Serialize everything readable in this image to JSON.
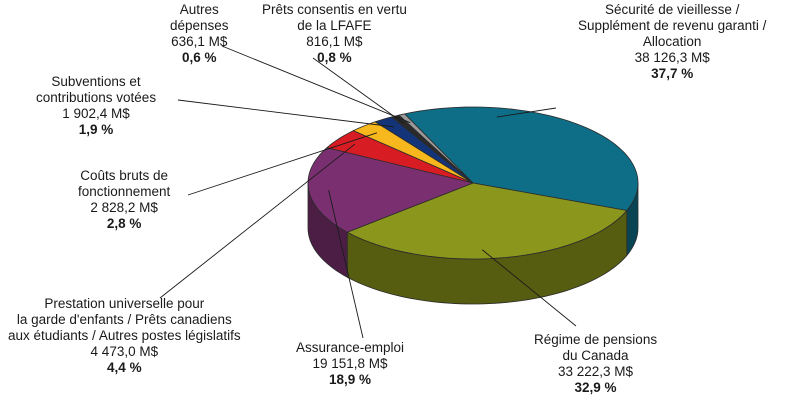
{
  "chart_data": {
    "type": "pie",
    "style": "3d",
    "slices": [
      {
        "lines": [
          "Sécurité de vieillesse /",
          "Supplément de revenu garanti /",
          "Allocation"
        ],
        "amount": "38 126,3 M$",
        "percent_label": "37,7 %",
        "value": 37.7,
        "color": "#0e6e87"
      },
      {
        "lines": [
          "Régime de pensions",
          "du Canada"
        ],
        "amount": "33 222,3 M$",
        "percent_label": "32,9 %",
        "value": 32.9,
        "color": "#8a961c"
      },
      {
        "lines": [
          "Assurance-emploi"
        ],
        "amount": "19 151,8 M$",
        "percent_label": "18,9 %",
        "value": 18.9,
        "color": "#7a3070"
      },
      {
        "lines": [
          "Prestation universelle pour",
          "la garde d'enfants / Prêts canadiens",
          "aux étudiants / Autres postes législatifs"
        ],
        "amount": "4 473,0 M$",
        "percent_label": "4,4 %",
        "value": 4.4,
        "color": "#d81c24"
      },
      {
        "lines": [
          "Coûts bruts de",
          "fonctionnement"
        ],
        "amount": "2 828,2 M$",
        "percent_label": "2,8 %",
        "value": 2.8,
        "color": "#f6b81c"
      },
      {
        "lines": [
          "Subventions et",
          "contributions votées"
        ],
        "amount": "1 902,4 M$",
        "percent_label": "1,9 %",
        "value": 1.9,
        "color": "#14347a"
      },
      {
        "lines": [
          "Prêts consentis en vertu",
          "de la LFAFE"
        ],
        "amount": "816,1 M$",
        "percent_label": "0,8 %",
        "value": 0.8,
        "color": "#2a2a2a"
      },
      {
        "lines": [
          "Autres",
          "dépenses"
        ],
        "amount": "636,1 M$",
        "percent_label": "0,6 %",
        "value": 0.6,
        "color": "#9a9a9a"
      }
    ]
  }
}
